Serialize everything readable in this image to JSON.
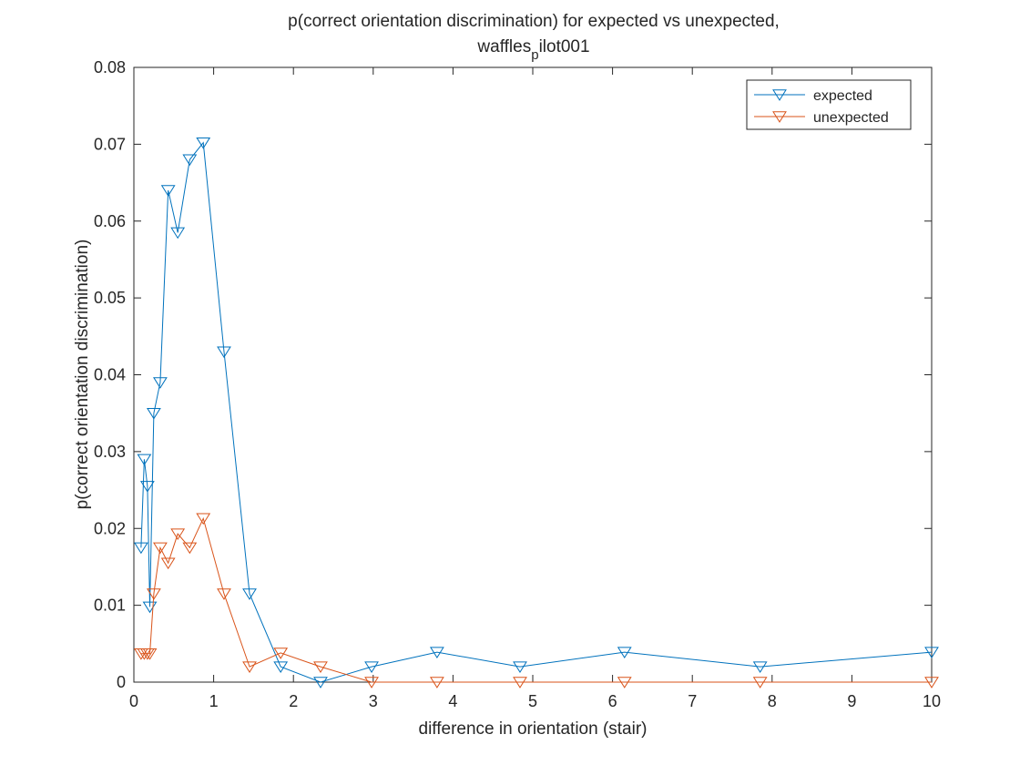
{
  "chart_data": {
    "type": "line",
    "title_line1": "p(correct orientation discrimination) for expected vs unexpected,",
    "title_line2_main": "waffles",
    "title_line2_sub": "p",
    "title_line2_rest": "ilot001",
    "xlabel": "difference in orientation (stair)",
    "ylabel": "p(correct orientation discrimination)",
    "xlim": [
      0,
      10
    ],
    "ylim": [
      0,
      0.08
    ],
    "xticks": [
      0,
      1,
      2,
      3,
      4,
      5,
      6,
      7,
      8,
      9,
      10
    ],
    "xtick_labels": [
      "0",
      "1",
      "2",
      "3",
      "4",
      "5",
      "6",
      "7",
      "8",
      "9",
      "10"
    ],
    "yticks": [
      0,
      0.01,
      0.02,
      0.03,
      0.04,
      0.05,
      0.06,
      0.07,
      0.08
    ],
    "ytick_labels": [
      "0",
      "0.01",
      "0.02",
      "0.03",
      "0.04",
      "0.05",
      "0.06",
      "0.07",
      "0.08"
    ],
    "grid": false,
    "legend_position": "top-right",
    "marker": "triangle-down",
    "series": [
      {
        "name": "expected",
        "color": "#0072BD",
        "x": [
          0.09,
          0.13,
          0.17,
          0.2,
          0.25,
          0.33,
          0.43,
          0.55,
          0.7,
          0.87,
          1.13,
          1.45,
          1.84,
          2.34,
          2.98,
          3.8,
          4.84,
          6.15,
          7.85,
          10.0
        ],
        "y": [
          0.0175,
          0.029,
          0.0255,
          0.0098,
          0.035,
          0.039,
          0.064,
          0.0585,
          0.068,
          0.0702,
          0.043,
          0.0115,
          0.002,
          0.0,
          0.002,
          0.0039,
          0.002,
          0.0039,
          0.002,
          0.0039
        ]
      },
      {
        "name": "unexpected",
        "color": "#D95319",
        "x": [
          0.09,
          0.13,
          0.17,
          0.2,
          0.25,
          0.33,
          0.43,
          0.55,
          0.7,
          0.87,
          1.13,
          1.45,
          1.84,
          2.34,
          2.98,
          3.8,
          4.84,
          6.15,
          7.85,
          10.0
        ],
        "y": [
          0.0037,
          0.0037,
          0.0037,
          0.0037,
          0.0115,
          0.0175,
          0.0155,
          0.0193,
          0.0175,
          0.0213,
          0.0115,
          0.002,
          0.0038,
          0.002,
          0.0,
          0.0,
          0.0,
          0.0,
          0.0,
          0.0
        ]
      }
    ]
  }
}
